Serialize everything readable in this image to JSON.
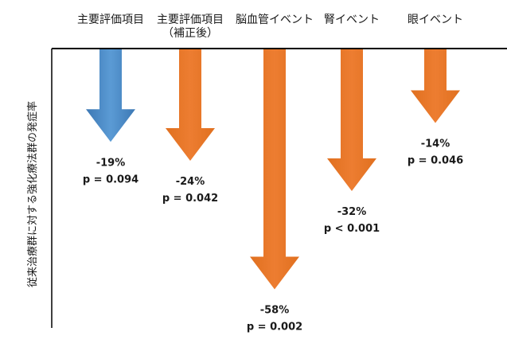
{
  "chart_data": {
    "type": "bar",
    "orientation": "downward-arrows",
    "categories": [
      "主要評価項目",
      "主要評価項目\n（補正後）",
      "脳血管イベント",
      "腎イベント",
      "眼イベント"
    ],
    "values": [
      -19,
      -24,
      -58,
      -32,
      -14
    ],
    "value_labels": [
      "-19%",
      "-24%",
      "-58%",
      "-32%",
      "-14%"
    ],
    "p_values": [
      "p = 0.094",
      "p = 0.042",
      "p = 0.002",
      "p < 0.001",
      "p = 0.046"
    ],
    "ylabel": "従来治療群に対する強化療法群の発症率",
    "ylim": [
      -60,
      0
    ],
    "grid": false,
    "legend": "none",
    "colors": [
      "#5b9bd5",
      "#ed7d31",
      "#ed7d31",
      "#ed7d31",
      "#ed7d31"
    ],
    "color_dark": [
      "#3c78b4",
      "#e0701f",
      "#e0701f",
      "#e0701f",
      "#e0701f"
    ]
  }
}
